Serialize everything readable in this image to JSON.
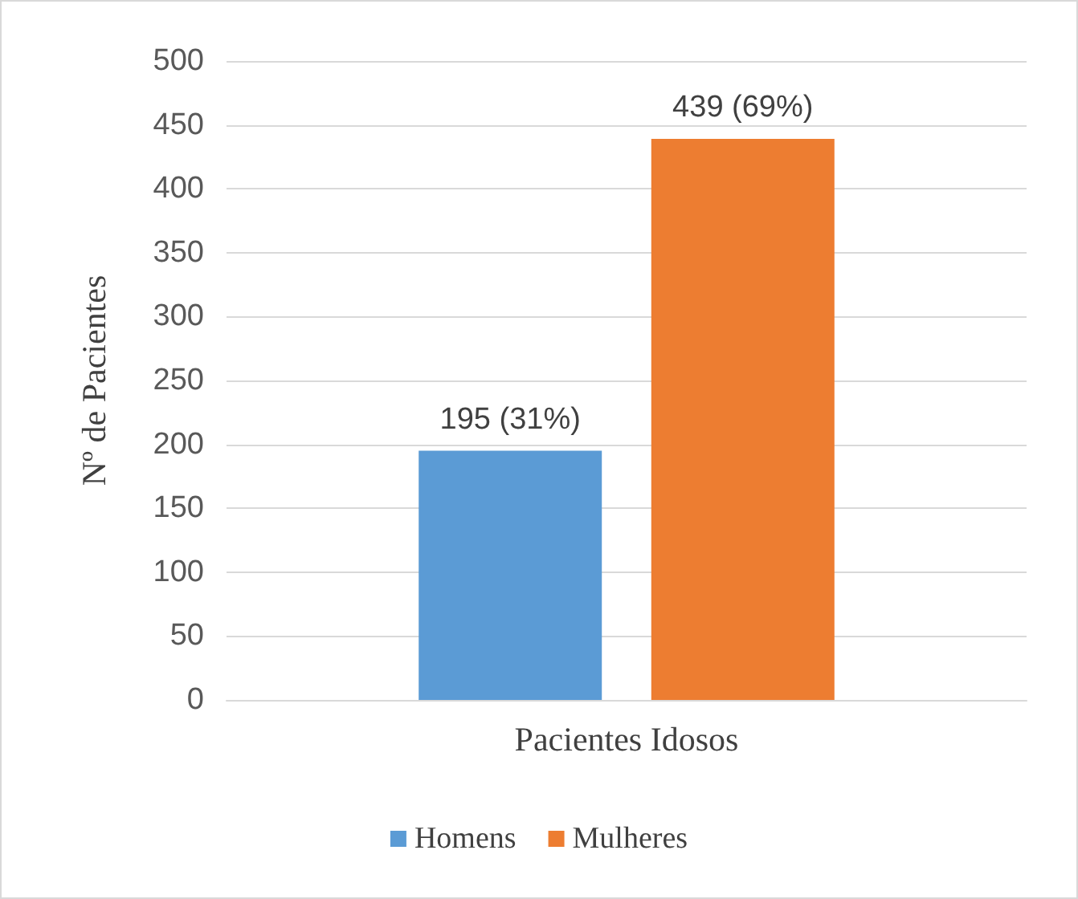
{
  "chart_data": {
    "type": "bar",
    "categories": [
      "Pacientes Idosos"
    ],
    "ylabel": "Nº de Pacientes",
    "ylim": [
      0,
      500
    ],
    "yticks": [
      0,
      50,
      100,
      150,
      200,
      250,
      300,
      350,
      400,
      450,
      500
    ],
    "grid": "y",
    "legend": "bottom",
    "series": [
      {
        "name": "Homens",
        "color": "#5b9bd5",
        "values": [
          195
        ],
        "value_labels": [
          "195 (31%)"
        ]
      },
      {
        "name": "Mulheres",
        "color": "#ed7d31",
        "values": [
          439
        ],
        "value_labels": [
          "439 (69%)"
        ]
      }
    ]
  }
}
